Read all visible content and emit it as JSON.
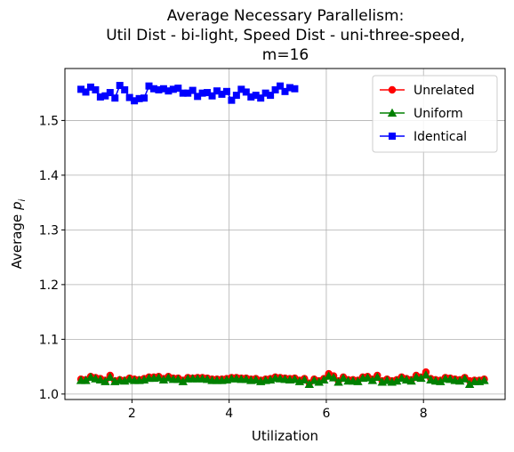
{
  "chart_data": {
    "type": "line",
    "title_lines": [
      "Average Necessary Parallelism:",
      "Util Dist - bi-light, Speed Dist - uni-three-speed,",
      "m=16"
    ],
    "xlabel": "Utilization",
    "ylabel_main": "Average ",
    "ylabel_var": "p",
    "ylabel_sub": "i",
    "xlim": [
      0.62,
      9.68
    ],
    "ylim": [
      0.99,
      1.595
    ],
    "xticks": [
      2,
      4,
      6,
      8
    ],
    "xtick_labels": [
      "2",
      "4",
      "6",
      "8"
    ],
    "yticks": [
      1.0,
      1.1,
      1.2,
      1.3,
      1.4,
      1.5
    ],
    "ytick_labels": [
      "1.0",
      "1.1",
      "1.2",
      "1.3",
      "1.4",
      "1.5"
    ],
    "grid": true,
    "legend_position": "top-right",
    "series": [
      {
        "name": "Unrelated",
        "color": "#ff0000",
        "marker": "circle",
        "x": [
          0.95,
          1.05,
          1.15,
          1.25,
          1.35,
          1.45,
          1.55,
          1.65,
          1.75,
          1.85,
          1.95,
          2.05,
          2.15,
          2.25,
          2.35,
          2.45,
          2.55,
          2.65,
          2.75,
          2.85,
          2.95,
          3.05,
          3.15,
          3.25,
          3.35,
          3.45,
          3.55,
          3.65,
          3.75,
          3.85,
          3.95,
          4.05,
          4.15,
          4.25,
          4.35,
          4.45,
          4.55,
          4.65,
          4.75,
          4.85,
          4.95,
          5.05,
          5.15,
          5.25,
          5.35,
          5.45,
          5.55,
          5.65,
          5.75,
          5.85,
          5.95,
          6.05,
          6.15,
          6.25,
          6.35,
          6.45,
          6.55,
          6.65,
          6.75,
          6.85,
          6.95,
          7.05,
          7.15,
          7.25,
          7.35,
          7.45,
          7.55,
          7.65,
          7.75,
          7.85,
          7.95,
          8.05,
          8.15,
          8.25,
          8.35,
          8.45,
          8.55,
          8.65,
          8.75,
          8.85,
          8.95,
          9.05,
          9.15,
          9.25
        ],
        "values": [
          1.027,
          1.026,
          1.032,
          1.03,
          1.028,
          1.025,
          1.034,
          1.024,
          1.026,
          1.025,
          1.029,
          1.027,
          1.026,
          1.028,
          1.031,
          1.031,
          1.032,
          1.028,
          1.032,
          1.029,
          1.029,
          1.025,
          1.03,
          1.029,
          1.03,
          1.03,
          1.029,
          1.027,
          1.027,
          1.027,
          1.028,
          1.03,
          1.03,
          1.029,
          1.029,
          1.027,
          1.028,
          1.025,
          1.027,
          1.028,
          1.031,
          1.03,
          1.029,
          1.028,
          1.029,
          1.025,
          1.028,
          1.02,
          1.027,
          1.024,
          1.028,
          1.037,
          1.033,
          1.024,
          1.031,
          1.026,
          1.026,
          1.025,
          1.031,
          1.032,
          1.027,
          1.034,
          1.024,
          1.027,
          1.024,
          1.026,
          1.031,
          1.028,
          1.026,
          1.034,
          1.031,
          1.04,
          1.028,
          1.026,
          1.025,
          1.03,
          1.029,
          1.027,
          1.026,
          1.03,
          1.024,
          1.025,
          1.025,
          1.027
        ]
      },
      {
        "name": "Uniform",
        "color": "#008000",
        "marker": "triangle",
        "x": [
          0.95,
          1.05,
          1.15,
          1.25,
          1.35,
          1.45,
          1.55,
          1.65,
          1.75,
          1.85,
          1.95,
          2.05,
          2.15,
          2.25,
          2.35,
          2.45,
          2.55,
          2.65,
          2.75,
          2.85,
          2.95,
          3.05,
          3.15,
          3.25,
          3.35,
          3.45,
          3.55,
          3.65,
          3.75,
          3.85,
          3.95,
          4.05,
          4.15,
          4.25,
          4.35,
          4.45,
          4.55,
          4.65,
          4.75,
          4.85,
          4.95,
          5.05,
          5.15,
          5.25,
          5.35,
          5.45,
          5.55,
          5.65,
          5.75,
          5.85,
          5.95,
          6.05,
          6.15,
          6.25,
          6.35,
          6.45,
          6.55,
          6.65,
          6.75,
          6.85,
          6.95,
          7.05,
          7.15,
          7.25,
          7.35,
          7.45,
          7.55,
          7.65,
          7.75,
          7.85,
          7.95,
          8.05,
          8.15,
          8.25,
          8.35,
          8.45,
          8.55,
          8.65,
          8.75,
          8.85,
          8.95,
          9.05,
          9.15,
          9.25
        ],
        "values": [
          1.025,
          1.025,
          1.031,
          1.028,
          1.026,
          1.023,
          1.031,
          1.023,
          1.025,
          1.024,
          1.027,
          1.025,
          1.025,
          1.026,
          1.029,
          1.029,
          1.03,
          1.026,
          1.03,
          1.027,
          1.027,
          1.023,
          1.028,
          1.028,
          1.028,
          1.028,
          1.027,
          1.025,
          1.025,
          1.025,
          1.026,
          1.028,
          1.028,
          1.027,
          1.027,
          1.025,
          1.026,
          1.023,
          1.025,
          1.026,
          1.029,
          1.028,
          1.027,
          1.026,
          1.027,
          1.023,
          1.026,
          1.018,
          1.025,
          1.022,
          1.026,
          1.033,
          1.03,
          1.022,
          1.029,
          1.024,
          1.024,
          1.023,
          1.029,
          1.03,
          1.025,
          1.031,
          1.022,
          1.025,
          1.022,
          1.024,
          1.029,
          1.026,
          1.024,
          1.031,
          1.029,
          1.035,
          1.026,
          1.024,
          1.023,
          1.028,
          1.027,
          1.025,
          1.024,
          1.028,
          1.018,
          1.023,
          1.023,
          1.025
        ]
      },
      {
        "name": "Identical",
        "color": "#0000ff",
        "marker": "square",
        "x": [
          0.95,
          1.05,
          1.15,
          1.25,
          1.35,
          1.45,
          1.55,
          1.65,
          1.75,
          1.85,
          1.95,
          2.05,
          2.15,
          2.25,
          2.35,
          2.45,
          2.55,
          2.65,
          2.75,
          2.85,
          2.95,
          3.05,
          3.15,
          3.25,
          3.35,
          3.45,
          3.55,
          3.65,
          3.75,
          3.85,
          3.95,
          4.05,
          4.15,
          4.25,
          4.35,
          4.45,
          4.55,
          4.65,
          4.75,
          4.85,
          4.95,
          5.05,
          5.15,
          5.25,
          5.35
        ],
        "values": [
          1.557,
          1.552,
          1.561,
          1.556,
          1.543,
          1.545,
          1.551,
          1.541,
          1.564,
          1.556,
          1.542,
          1.536,
          1.54,
          1.541,
          1.563,
          1.558,
          1.556,
          1.558,
          1.554,
          1.557,
          1.559,
          1.55,
          1.55,
          1.555,
          1.544,
          1.55,
          1.551,
          1.545,
          1.554,
          1.548,
          1.553,
          1.537,
          1.546,
          1.557,
          1.552,
          1.543,
          1.546,
          1.541,
          1.55,
          1.546,
          1.556,
          1.563,
          1.553,
          1.56,
          1.558
        ]
      }
    ]
  }
}
